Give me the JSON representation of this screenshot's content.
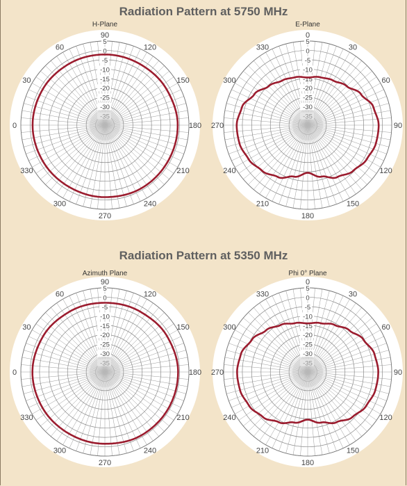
{
  "section_titles": [
    "Radiation Pattern at 5750 MHz",
    "Radiation Pattern at 5350 MHz"
  ],
  "colors": {
    "background": "#f3e4c9",
    "plot_disc": "#ffffff",
    "grid": "#9a9a9a",
    "trace": "#9b1c2e"
  },
  "chart_data": [
    {
      "type": "polar",
      "section": "Radiation Pattern at 5750 MHz",
      "title": "H-Plane",
      "radial_ticks": [
        "5",
        "0",
        "-5",
        "-10",
        "-15",
        "-20",
        "-25",
        "-30",
        "-35"
      ],
      "angle_labels": [
        "90",
        "60",
        "30",
        "0",
        "330",
        "300",
        "270",
        "240",
        "210",
        "180",
        "150",
        "120"
      ],
      "zero_direction": "right",
      "angle_step": 30,
      "rlim": [
        -40,
        5
      ],
      "series": [
        {
          "theta": [
            0,
            30,
            60,
            90,
            120,
            150,
            180,
            210,
            240,
            270,
            300,
            330
          ],
          "gain_db": [
            -1.0,
            -1.8,
            -2.3,
            -2.2,
            -2.0,
            -1.6,
            -1.3,
            -1.6,
            -1.8,
            -1.5,
            -1.0,
            -1.1
          ]
        }
      ]
    },
    {
      "type": "polar",
      "section": "Radiation Pattern at 5750 MHz",
      "title": "E-Plane",
      "radial_ticks": [
        "5",
        "0",
        "-5",
        "-10",
        "-15",
        "-20",
        "-25",
        "-30",
        "-35"
      ],
      "angle_labels": [
        "0",
        "30",
        "60",
        "90",
        "120",
        "150",
        "180",
        "210",
        "240",
        "270",
        "300",
        "330"
      ],
      "zero_direction": "top",
      "angle_step": 30,
      "rlim": [
        -40,
        5
      ],
      "series": [
        {
          "theta": [
            0,
            15,
            30,
            45,
            60,
            75,
            90,
            105,
            120,
            135,
            150,
            165,
            180,
            195,
            210,
            225,
            240,
            255,
            270,
            285,
            300,
            315,
            330,
            345
          ],
          "gain_db": [
            -14.5,
            -13.5,
            -12.5,
            -10.5,
            -7.0,
            -3.5,
            -2.0,
            -2.2,
            -3.5,
            -5.5,
            -8.0,
            -11.5,
            -14.5,
            -11.5,
            -8.0,
            -5.5,
            -3.5,
            -2.2,
            -2.0,
            -3.5,
            -7.0,
            -10.5,
            -12.5,
            -13.5
          ]
        }
      ]
    },
    {
      "type": "polar",
      "section": "Radiation Pattern at 5350 MHz",
      "title": "Azimuth Plane",
      "radial_ticks": [
        "5",
        "0",
        "-5",
        "-10",
        "-15",
        "-20",
        "-25",
        "-30",
        "-35"
      ],
      "angle_labels": [
        "90",
        "60",
        "30",
        "0",
        "330",
        "300",
        "270",
        "240",
        "210",
        "180",
        "150",
        "120"
      ],
      "zero_direction": "right",
      "angle_step": 30,
      "rlim": [
        -40,
        5
      ],
      "series": [
        {
          "theta": [
            0,
            30,
            60,
            90,
            120,
            150,
            180,
            210,
            240,
            270,
            300,
            330
          ],
          "gain_db": [
            -0.8,
            -1.6,
            -2.6,
            -3.0,
            -2.6,
            -1.8,
            -1.2,
            -1.5,
            -1.8,
            -1.6,
            -0.9,
            -0.8
          ]
        }
      ]
    },
    {
      "type": "polar",
      "section": "Radiation Pattern at 5350 MHz",
      "title": "Phi 0° Plane",
      "radial_ticks": [
        "5",
        "0",
        "-5",
        "-10",
        "-15",
        "-20",
        "-25",
        "-30",
        "-35"
      ],
      "angle_labels": [
        "0",
        "30",
        "60",
        "90",
        "120",
        "150",
        "180",
        "210",
        "240",
        "270",
        "300",
        "330"
      ],
      "zero_direction": "top",
      "angle_step": 30,
      "rlim": [
        -40,
        5
      ],
      "series": [
        {
          "theta": [
            0,
            15,
            30,
            45,
            60,
            75,
            90,
            105,
            120,
            135,
            150,
            165,
            180,
            195,
            210,
            225,
            240,
            255,
            270,
            285,
            300,
            315,
            330,
            345
          ],
          "gain_db": [
            -14.0,
            -13.0,
            -11.0,
            -8.5,
            -5.5,
            -3.0,
            -2.2,
            -2.5,
            -3.8,
            -6.0,
            -9.0,
            -12.0,
            -14.5,
            -12.0,
            -9.0,
            -6.0,
            -3.8,
            -2.5,
            -2.2,
            -3.0,
            -5.5,
            -8.5,
            -11.0,
            -13.0
          ]
        }
      ]
    }
  ]
}
